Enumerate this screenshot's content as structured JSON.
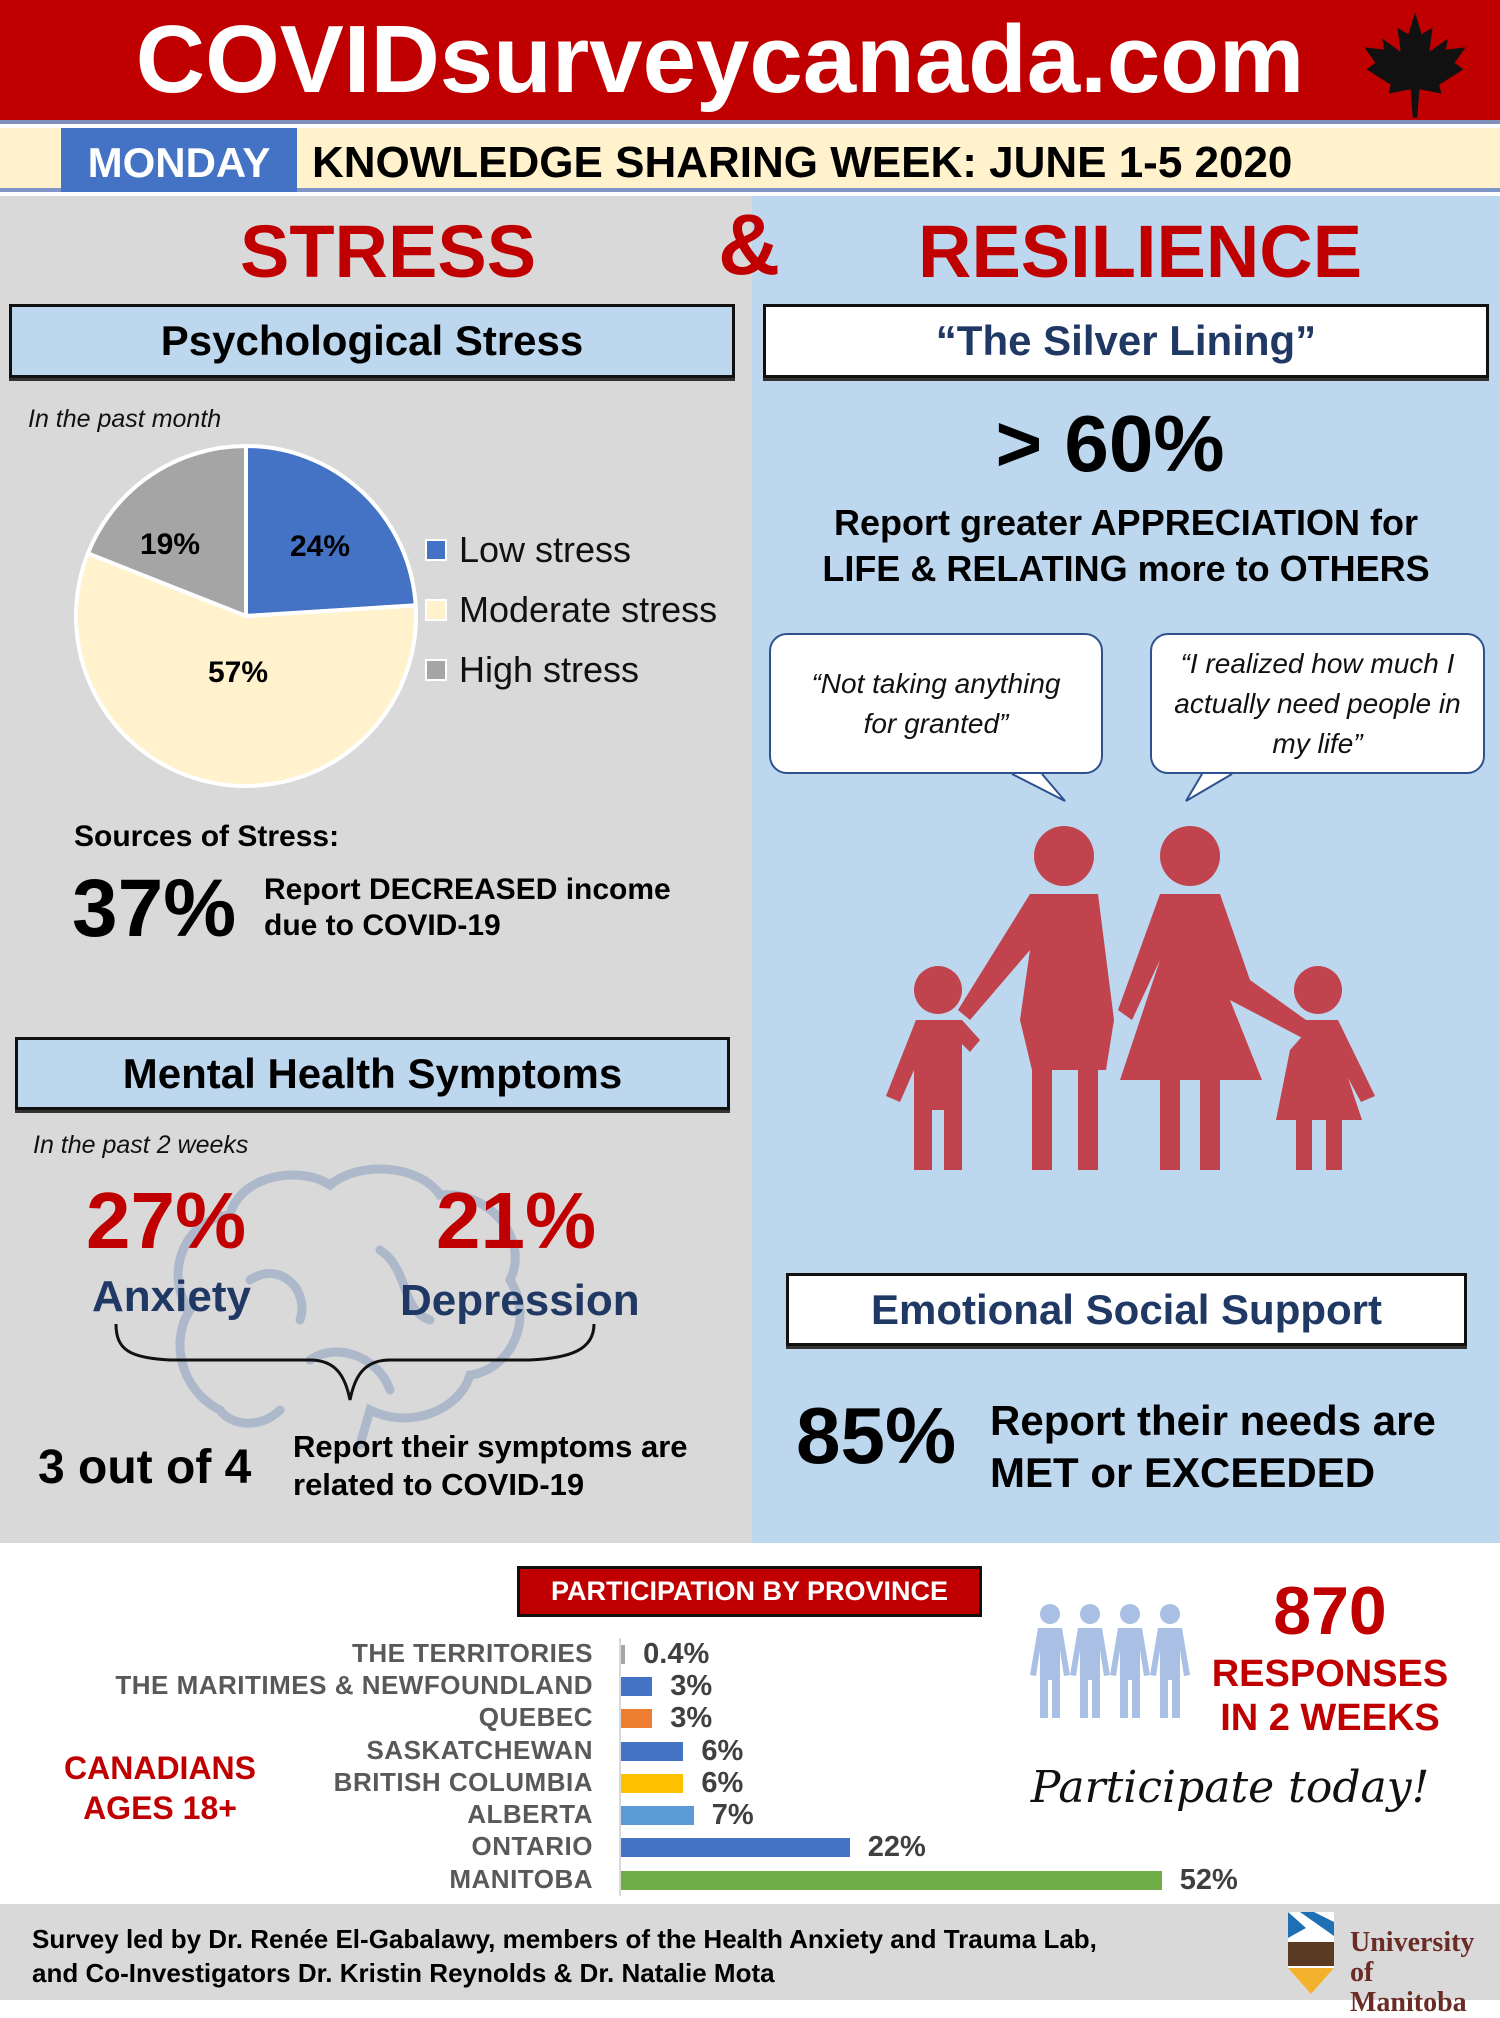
{
  "header": {
    "site": "COVIDsurveycanada.com",
    "day": "MONDAY",
    "event": "KNOWLEDGE SHARING WEEK: JUNE 1-5 2020",
    "icon": "maple-leaf-icon"
  },
  "titles": {
    "stress": "STRESS",
    "amp": "&",
    "resilience": "RESILIENCE"
  },
  "psych": {
    "title": "Psychological Stress",
    "period": "In the past month",
    "pie": [
      {
        "label": "Low stress",
        "value": 24,
        "display": "24%",
        "color": "#4472c4"
      },
      {
        "label": "Moderate stress",
        "value": 57,
        "display": "57%",
        "color": "#fff2cc"
      },
      {
        "label": "High stress",
        "value": 19,
        "display": "19%",
        "color": "#a5a5a5"
      }
    ],
    "sources_label": "Sources of Stress:",
    "income_pct": "37%",
    "income_line1": "Report DECREASED income",
    "income_line2": "due to COVID-19"
  },
  "mental": {
    "title": "Mental Health Symptoms",
    "period": "In the past 2 weeks",
    "anxiety_pct": "27%",
    "anxiety": "Anxiety",
    "depression_pct": "21%",
    "depression": "Depression",
    "ratio": "3 out of 4",
    "related1": "Report their symptoms are",
    "related2": "related to COVID-19"
  },
  "silver": {
    "title": "“The Silver Lining”",
    "pct": "> 60%",
    "line1": "Report greater APPRECIATION for",
    "line2": "LIFE & RELATING more to OTHERS",
    "quote1": "“Not taking anything for granted”",
    "quote2": "“I realized how much I actually need people in my life”"
  },
  "support": {
    "title": "Emotional Social Support",
    "pct": "85%",
    "line1": "Report their needs are",
    "line2": "MET or EXCEEDED"
  },
  "participation": {
    "title": "PARTICIPATION BY PROVINCE",
    "audience1": "CANADIANS",
    "audience2": "AGES 18+",
    "responses": "870",
    "responses_label1": "RESPONSES",
    "responses_label2": "IN 2 WEEKS",
    "cta": "Participate today!"
  },
  "chart_data": {
    "type": "bar",
    "orientation": "horizontal",
    "title": "PARTICIPATION BY PROVINCE",
    "categories": [
      "THE TERRITORIES",
      "THE MARITIMES & NEWFOUNDLAND",
      "QUEBEC",
      "SASKATCHEWAN",
      "BRITISH COLUMBIA",
      "ALBERTA",
      "ONTARIO",
      "MANITOBA"
    ],
    "values": [
      0.4,
      3,
      3,
      6,
      6,
      7,
      22,
      52
    ],
    "labels": [
      "0.4%",
      "3%",
      "3%",
      "6%",
      "6%",
      "7%",
      "22%",
      "52%"
    ],
    "colors": [
      "#a5a5a5",
      "#4472c4",
      "#ed7d31",
      "#4472c4",
      "#ffc000",
      "#5b9bd5",
      "#4472c4",
      "#70ad47"
    ],
    "unit": "%"
  },
  "footer": {
    "line1": "Survey led by Dr. Renée El-Gabalawy, members of the Health Anxiety and Trauma Lab,",
    "line2": "and Co-Investigators Dr. Kristin Reynolds & Dr. Natalie Mota",
    "logo": "University of Manitoba"
  }
}
